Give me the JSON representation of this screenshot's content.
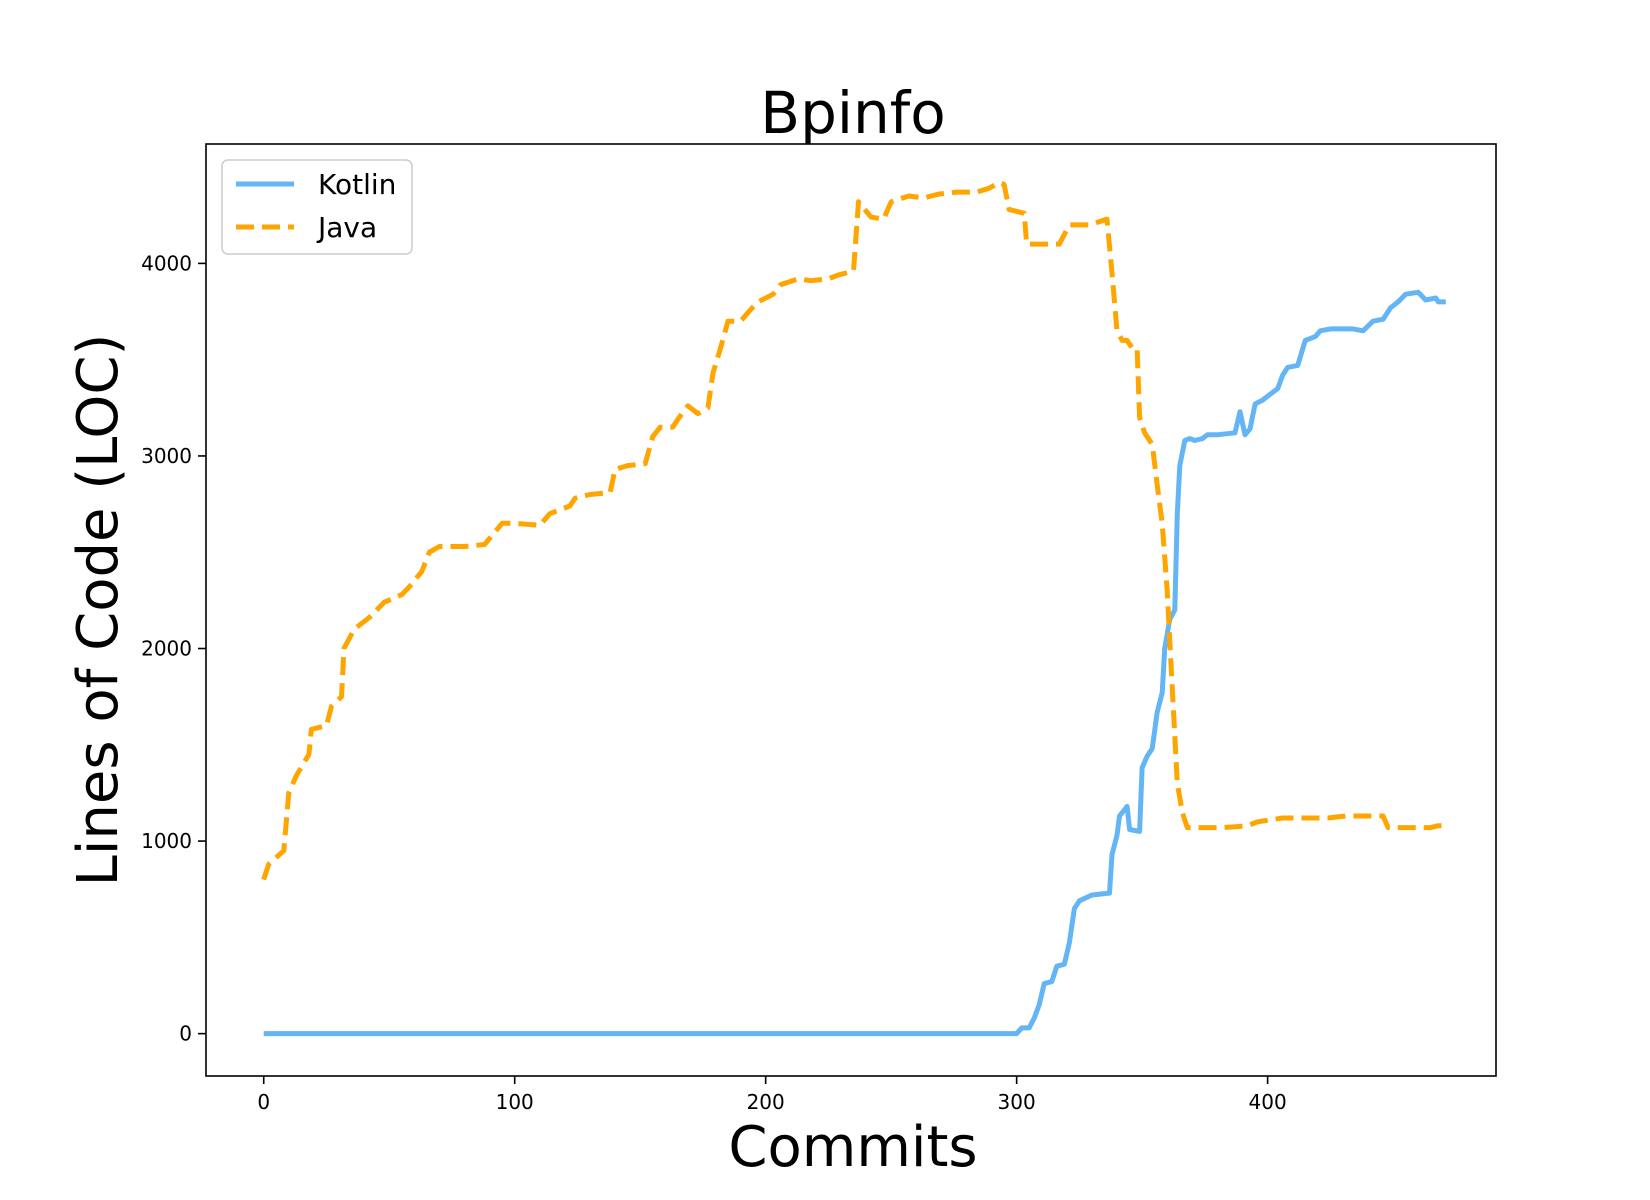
{
  "chart_data": {
    "type": "line",
    "title": "Bpinfo",
    "xlabel": "Commits",
    "ylabel": "Lines of Code (LOC)",
    "xlim": [
      -23,
      491
    ],
    "ylim": [
      -220,
      4620
    ],
    "xticks": [
      0,
      100,
      200,
      300,
      400
    ],
    "yticks": [
      0,
      1000,
      2000,
      3000,
      4000
    ],
    "grid": false,
    "legend_position": "top-left",
    "series": [
      {
        "name": "Kotlin",
        "color": "#64b5f6",
        "style": "solid",
        "points": [
          [
            0,
            0
          ],
          [
            100,
            0
          ],
          [
            200,
            0
          ],
          [
            300,
            0
          ],
          [
            302,
            30
          ],
          [
            305,
            30
          ],
          [
            307,
            80
          ],
          [
            309,
            150
          ],
          [
            311,
            260
          ],
          [
            314,
            270
          ],
          [
            316,
            350
          ],
          [
            319,
            360
          ],
          [
            321,
            470
          ],
          [
            323,
            650
          ],
          [
            325,
            690
          ],
          [
            330,
            720
          ],
          [
            337,
            730
          ],
          [
            338,
            930
          ],
          [
            340,
            1030
          ],
          [
            341,
            1130
          ],
          [
            344,
            1180
          ],
          [
            345,
            1060
          ],
          [
            349,
            1050
          ],
          [
            350,
            1380
          ],
          [
            352,
            1440
          ],
          [
            354,
            1480
          ],
          [
            356,
            1670
          ],
          [
            358,
            1770
          ],
          [
            359,
            2000
          ],
          [
            361,
            2150
          ],
          [
            363,
            2200
          ],
          [
            364,
            2700
          ],
          [
            365,
            2950
          ],
          [
            367,
            3080
          ],
          [
            369,
            3090
          ],
          [
            371,
            3080
          ],
          [
            374,
            3090
          ],
          [
            376,
            3110
          ],
          [
            380,
            3110
          ],
          [
            387,
            3120
          ],
          [
            389,
            3230
          ],
          [
            391,
            3110
          ],
          [
            393,
            3140
          ],
          [
            395,
            3270
          ],
          [
            398,
            3290
          ],
          [
            401,
            3320
          ],
          [
            404,
            3350
          ],
          [
            406,
            3420
          ],
          [
            408,
            3460
          ],
          [
            412,
            3470
          ],
          [
            415,
            3600
          ],
          [
            419,
            3620
          ],
          [
            421,
            3650
          ],
          [
            425,
            3660
          ],
          [
            430,
            3660
          ],
          [
            434,
            3660
          ],
          [
            438,
            3650
          ],
          [
            442,
            3700
          ],
          [
            446,
            3710
          ],
          [
            449,
            3770
          ],
          [
            452,
            3800
          ],
          [
            455,
            3840
          ],
          [
            460,
            3850
          ],
          [
            463,
            3810
          ],
          [
            467,
            3820
          ],
          [
            468,
            3800
          ],
          [
            471,
            3800
          ]
        ]
      },
      {
        "name": "Java",
        "color": "#ffa500",
        "style": "dashed",
        "points": [
          [
            0,
            800
          ],
          [
            2,
            880
          ],
          [
            8,
            950
          ],
          [
            10,
            1250
          ],
          [
            13,
            1340
          ],
          [
            18,
            1450
          ],
          [
            19,
            1580
          ],
          [
            25,
            1600
          ],
          [
            27,
            1700
          ],
          [
            31,
            1750
          ],
          [
            32,
            2000
          ],
          [
            36,
            2100
          ],
          [
            42,
            2160
          ],
          [
            48,
            2240
          ],
          [
            55,
            2280
          ],
          [
            58,
            2320
          ],
          [
            63,
            2400
          ],
          [
            66,
            2500
          ],
          [
            70,
            2530
          ],
          [
            80,
            2530
          ],
          [
            88,
            2540
          ],
          [
            95,
            2650
          ],
          [
            100,
            2650
          ],
          [
            110,
            2640
          ],
          [
            114,
            2700
          ],
          [
            122,
            2740
          ],
          [
            124,
            2780
          ],
          [
            130,
            2800
          ],
          [
            138,
            2810
          ],
          [
            140,
            2930
          ],
          [
            145,
            2950
          ],
          [
            152,
            2960
          ],
          [
            155,
            3100
          ],
          [
            158,
            3150
          ],
          [
            163,
            3150
          ],
          [
            165,
            3190
          ],
          [
            169,
            3260
          ],
          [
            173,
            3220
          ],
          [
            177,
            3250
          ],
          [
            179,
            3430
          ],
          [
            182,
            3560
          ],
          [
            185,
            3700
          ],
          [
            190,
            3700
          ],
          [
            194,
            3760
          ],
          [
            197,
            3800
          ],
          [
            203,
            3840
          ],
          [
            206,
            3890
          ],
          [
            213,
            3920
          ],
          [
            218,
            3910
          ],
          [
            225,
            3920
          ],
          [
            229,
            3940
          ],
          [
            235,
            3960
          ],
          [
            237,
            4320
          ],
          [
            242,
            4240
          ],
          [
            247,
            4230
          ],
          [
            250,
            4320
          ],
          [
            257,
            4350
          ],
          [
            263,
            4340
          ],
          [
            269,
            4360
          ],
          [
            276,
            4370
          ],
          [
            284,
            4370
          ],
          [
            289,
            4390
          ],
          [
            293,
            4420
          ],
          [
            295,
            4410
          ],
          [
            297,
            4280
          ],
          [
            303,
            4260
          ],
          [
            304,
            4100
          ],
          [
            312,
            4100
          ],
          [
            317,
            4100
          ],
          [
            321,
            4200
          ],
          [
            329,
            4200
          ],
          [
            336,
            4230
          ],
          [
            338,
            3950
          ],
          [
            340,
            3650
          ],
          [
            342,
            3600
          ],
          [
            344,
            3600
          ],
          [
            346,
            3560
          ],
          [
            348,
            3560
          ],
          [
            349,
            3200
          ],
          [
            351,
            3120
          ],
          [
            354,
            3060
          ],
          [
            356,
            2850
          ],
          [
            358,
            2650
          ],
          [
            360,
            2300
          ],
          [
            362,
            1800
          ],
          [
            364,
            1300
          ],
          [
            366,
            1150
          ],
          [
            368,
            1070
          ],
          [
            374,
            1070
          ],
          [
            381,
            1070
          ],
          [
            388,
            1075
          ],
          [
            392,
            1080
          ],
          [
            396,
            1100
          ],
          [
            401,
            1110
          ],
          [
            406,
            1120
          ],
          [
            414,
            1120
          ],
          [
            424,
            1120
          ],
          [
            431,
            1130
          ],
          [
            438,
            1130
          ],
          [
            446,
            1130
          ],
          [
            448,
            1070
          ],
          [
            456,
            1070
          ],
          [
            465,
            1070
          ],
          [
            468,
            1080
          ],
          [
            471,
            1080
          ]
        ]
      }
    ]
  }
}
